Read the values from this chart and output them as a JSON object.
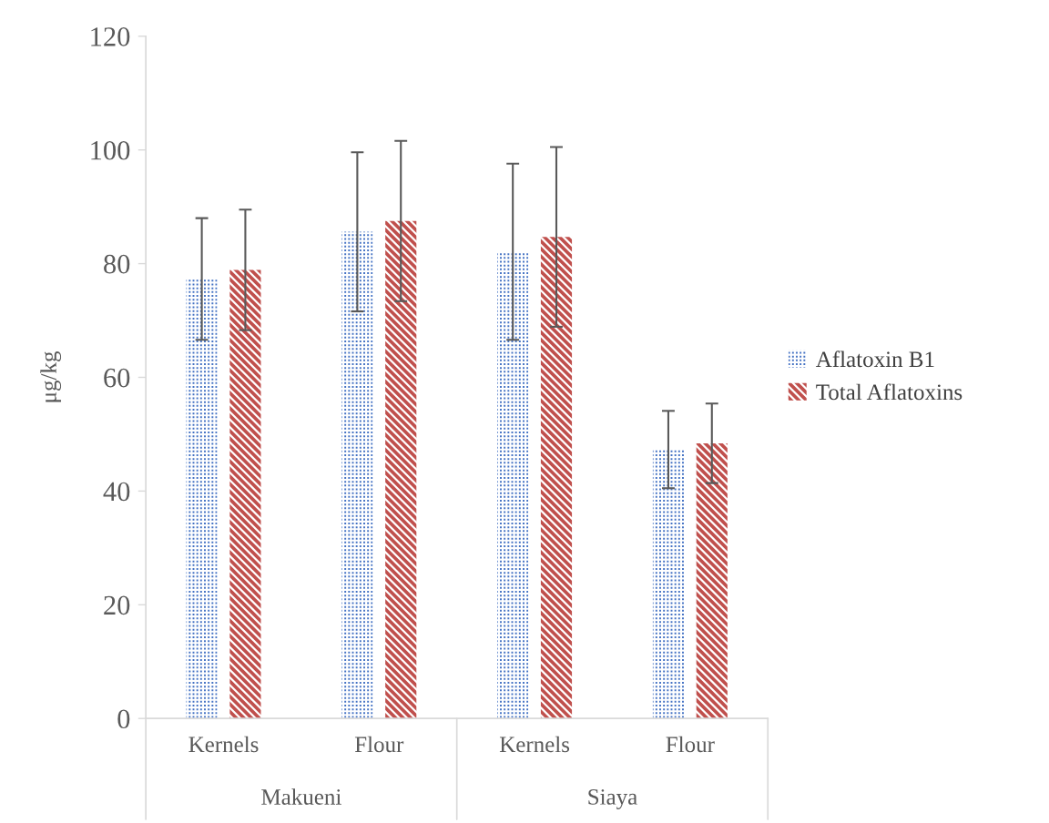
{
  "chart_data": {
    "type": "bar",
    "categories": [
      "Kernels",
      "Flour",
      "Kernels",
      "Flour"
    ],
    "annotations": [
      "Makueni",
      "Siaya"
    ],
    "ylabel": "μg/kg",
    "series": [
      {
        "name": "Aflatoxin B1",
        "color": "#4472c4",
        "values": [
          77.3,
          85.6,
          82.1,
          47.3
        ],
        "errors": [
          10.7,
          14.0,
          15.5,
          6.8
        ]
      },
      {
        "name": "Total Aflatoxins",
        "color": "#c0504d",
        "values": [
          78.9,
          87.5,
          84.7,
          48.4
        ],
        "errors": [
          10.6,
          14.1,
          15.8,
          7.0
        ]
      }
    ],
    "ylim": [
      0,
      120
    ],
    "yticks": [
      0,
      20,
      40,
      60,
      80,
      100,
      120
    ],
    "grid": false,
    "legend": "right"
  }
}
